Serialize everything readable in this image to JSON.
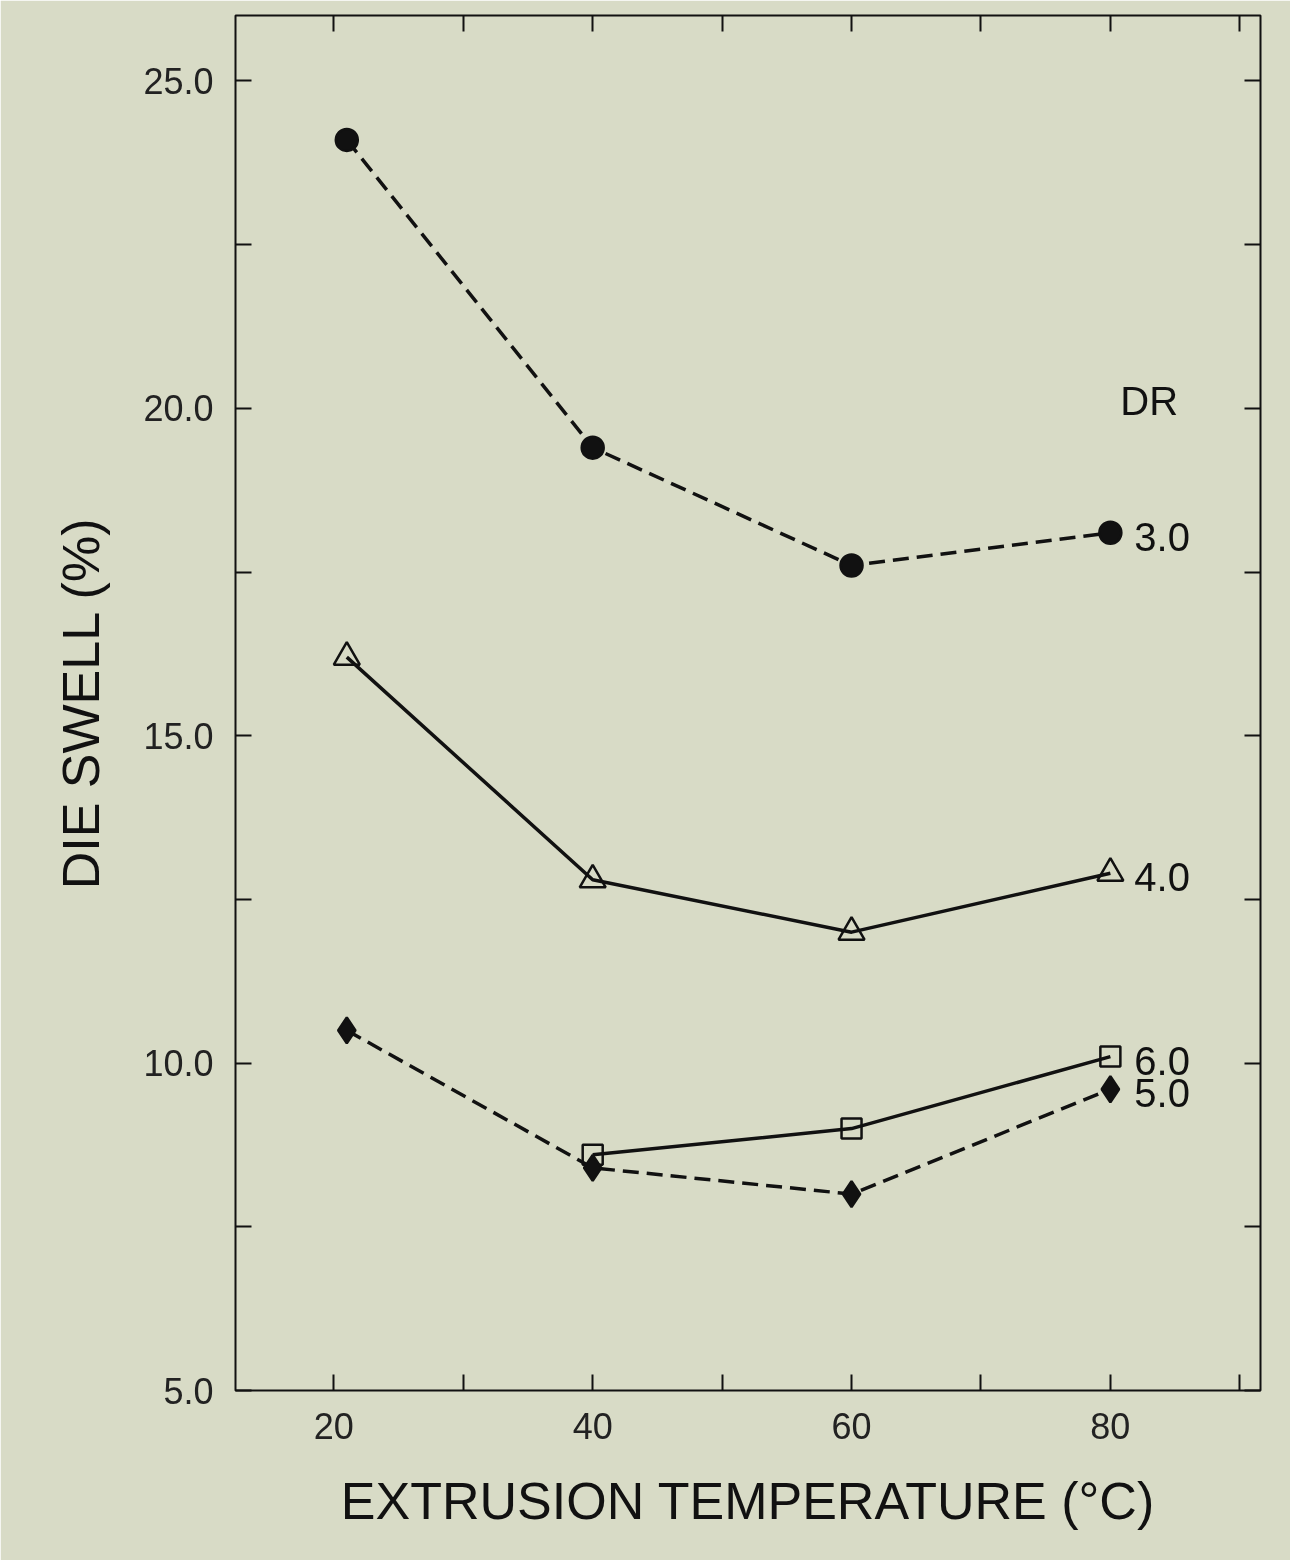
{
  "chart_data": {
    "type": "line",
    "xlabel": "EXTRUSION TEMPERATURE (°C)",
    "ylabel": "DIE SWELL (%)",
    "legend_title": "DR",
    "xlim": [
      12.4,
      91.6
    ],
    "ylim": [
      5.0,
      26.0
    ],
    "xticks": [
      20,
      {
        "value": 30,
        "label": null
      },
      40,
      {
        "value": 50,
        "label": null
      },
      60,
      {
        "value": 70,
        "label": null
      },
      80,
      {
        "value": 90,
        "label": null
      }
    ],
    "yticks": [
      {
        "value": 5,
        "label": "5.0"
      },
      {
        "value": 7.5,
        "label": null
      },
      {
        "value": 10,
        "label": "10.0"
      },
      {
        "value": 12.5,
        "label": null
      },
      {
        "value": 15,
        "label": "15.0"
      },
      {
        "value": 17.5,
        "label": null
      },
      {
        "value": 20,
        "label": "20.0"
      },
      {
        "value": 22.5,
        "label": null
      },
      {
        "value": 25,
        "label": "25.0"
      }
    ],
    "grid": false,
    "legend": "right",
    "series": [
      {
        "name": "3.0",
        "color": "#111111",
        "marker": "circle",
        "line_style": "dashed",
        "x": [
          21,
          40,
          60,
          80
        ],
        "values": [
          24.1,
          19.4,
          17.6,
          18.1
        ]
      },
      {
        "name": "4.0",
        "color": "#111111",
        "marker": "triangle",
        "line_style": "solid",
        "x": [
          21,
          40,
          60,
          80
        ],
        "values": [
          16.2,
          12.8,
          12.0,
          12.9
        ]
      },
      {
        "name": "6.0",
        "color": "#111111",
        "marker": "square",
        "line_style": "solid",
        "x": [
          40,
          60,
          80
        ],
        "values": [
          8.6,
          9.0,
          10.1
        ]
      },
      {
        "name": "5.0",
        "color": "#111111",
        "marker": "diamond",
        "line_style": "dashed",
        "x": [
          21,
          40,
          60,
          80
        ],
        "values": [
          10.5,
          8.4,
          8.0,
          9.6
        ]
      }
    ]
  }
}
